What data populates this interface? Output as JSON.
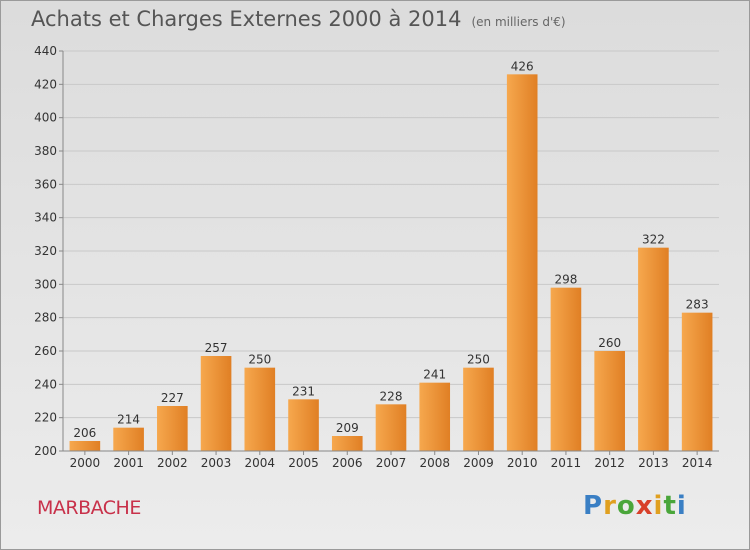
{
  "header": {
    "title": "Achats et Charges Externes 2000 à 2014",
    "unit": "(en milliers d'€)"
  },
  "footer": {
    "commune": "MARBACHE",
    "logo_letters": [
      {
        "char": "P",
        "color": "#3a7fc4"
      },
      {
        "char": "r",
        "color": "#e0a020"
      },
      {
        "char": "o",
        "color": "#4aa63a"
      },
      {
        "char": "x",
        "color": "#d8402a"
      },
      {
        "char": "i",
        "color": "#e0a020"
      },
      {
        "char": "t",
        "color": "#4aa63a"
      },
      {
        "char": "i",
        "color": "#3a7fc4"
      }
    ]
  },
  "colors": {
    "bar_light": "#f6a84e",
    "bar_dark": "#e07f24",
    "grid": "#c8c8c8",
    "axis_text": "#333333"
  },
  "chart_data": {
    "type": "bar",
    "categories": [
      "2000",
      "2001",
      "2002",
      "2003",
      "2004",
      "2005",
      "2006",
      "2007",
      "2008",
      "2009",
      "2010",
      "2011",
      "2012",
      "2013",
      "2014"
    ],
    "values": [
      206,
      214,
      227,
      257,
      250,
      231,
      209,
      228,
      241,
      250,
      426,
      298,
      260,
      322,
      283
    ],
    "ylim": [
      200,
      440
    ],
    "yticks": [
      200,
      220,
      240,
      260,
      280,
      300,
      320,
      340,
      360,
      380,
      400,
      420,
      440
    ],
    "grid": true,
    "data_labels": true
  }
}
